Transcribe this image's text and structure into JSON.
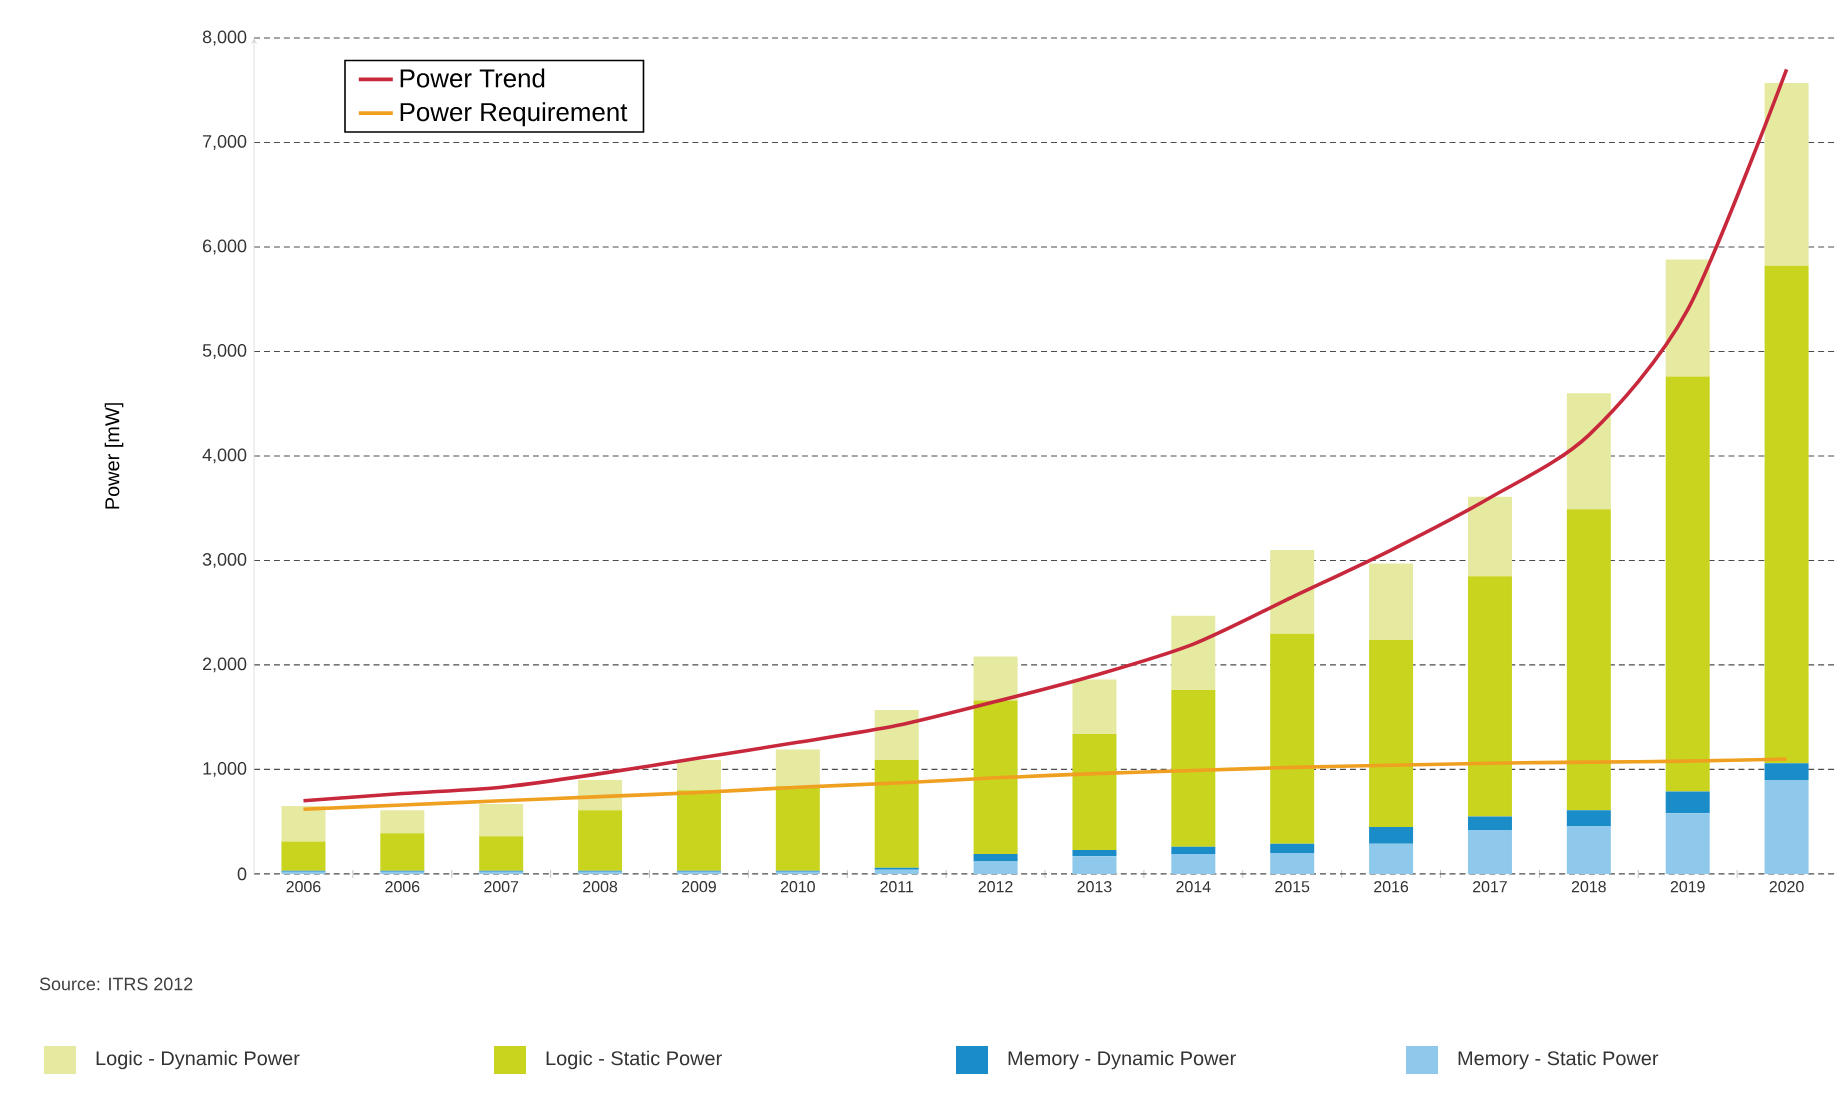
{
  "chart_data": {
    "type": "bar",
    "stacked": true,
    "ylabel": "Power [mW]",
    "categories": [
      "2006",
      "2006",
      "2007",
      "2008",
      "2009",
      "2010",
      "2011",
      "2012",
      "2013",
      "2014",
      "2015",
      "2016",
      "2017",
      "2018",
      "2019",
      "2020"
    ],
    "series": [
      {
        "name": "Memory - Static Power",
        "color": "#8ec8ea",
        "values": [
          20,
          20,
          20,
          20,
          20,
          20,
          40,
          120,
          170,
          190,
          200,
          290,
          420,
          460,
          580,
          900
        ]
      },
      {
        "name": "Memory - Dynamic Power",
        "color": "#1a8cc8",
        "values": [
          10,
          10,
          10,
          10,
          10,
          10,
          20,
          70,
          60,
          70,
          90,
          160,
          130,
          150,
          210,
          160
        ]
      },
      {
        "name": "Logic - Static Power",
        "color": "#c8d41e",
        "values": [
          280,
          360,
          330,
          580,
          770,
          810,
          1030,
          1470,
          1110,
          1500,
          2010,
          1790,
          2300,
          2880,
          3970,
          4760
        ]
      },
      {
        "name": "Logic - Dynamic Power",
        "color": "#e6eaa0",
        "values": [
          340,
          220,
          310,
          290,
          290,
          350,
          480,
          420,
          520,
          710,
          800,
          730,
          760,
          1110,
          1120,
          1750
        ]
      },
      {
        "name": "Power Trend",
        "type": "line",
        "color": "#c8283c",
        "values": [
          700,
          770,
          830,
          960,
          1110,
          1260,
          1420,
          1650,
          1900,
          2200,
          2650,
          3100,
          3600,
          4200,
          5400,
          7700
        ]
      },
      {
        "name": "Power Requirement",
        "type": "line",
        "color": "#f0a020",
        "values": [
          620,
          660,
          700,
          740,
          780,
          830,
          870,
          920,
          960,
          990,
          1020,
          1040,
          1060,
          1070,
          1080,
          1100
        ]
      }
    ],
    "ylim": [
      0,
      8000
    ],
    "yticks": [
      0,
      {
        "value": 1000,
        "label": "1,000"
      },
      {
        "value": 2000,
        "label": "2,000"
      },
      {
        "value": 3000,
        "label": "3,000"
      },
      {
        "value": 4000,
        "label": "4,000"
      },
      {
        "value": 5000,
        "label": "5,000"
      },
      {
        "value": 6000,
        "label": "6,000"
      },
      {
        "value": 7000,
        "label": "7,000"
      },
      {
        "value": 8000,
        "label": "8,000"
      }
    ],
    "grid": "y",
    "legend": "bottom",
    "marker": "none",
    "line_style": "solid",
    "annotations": [
      "Source: ITRS 2012"
    ]
  }
}
